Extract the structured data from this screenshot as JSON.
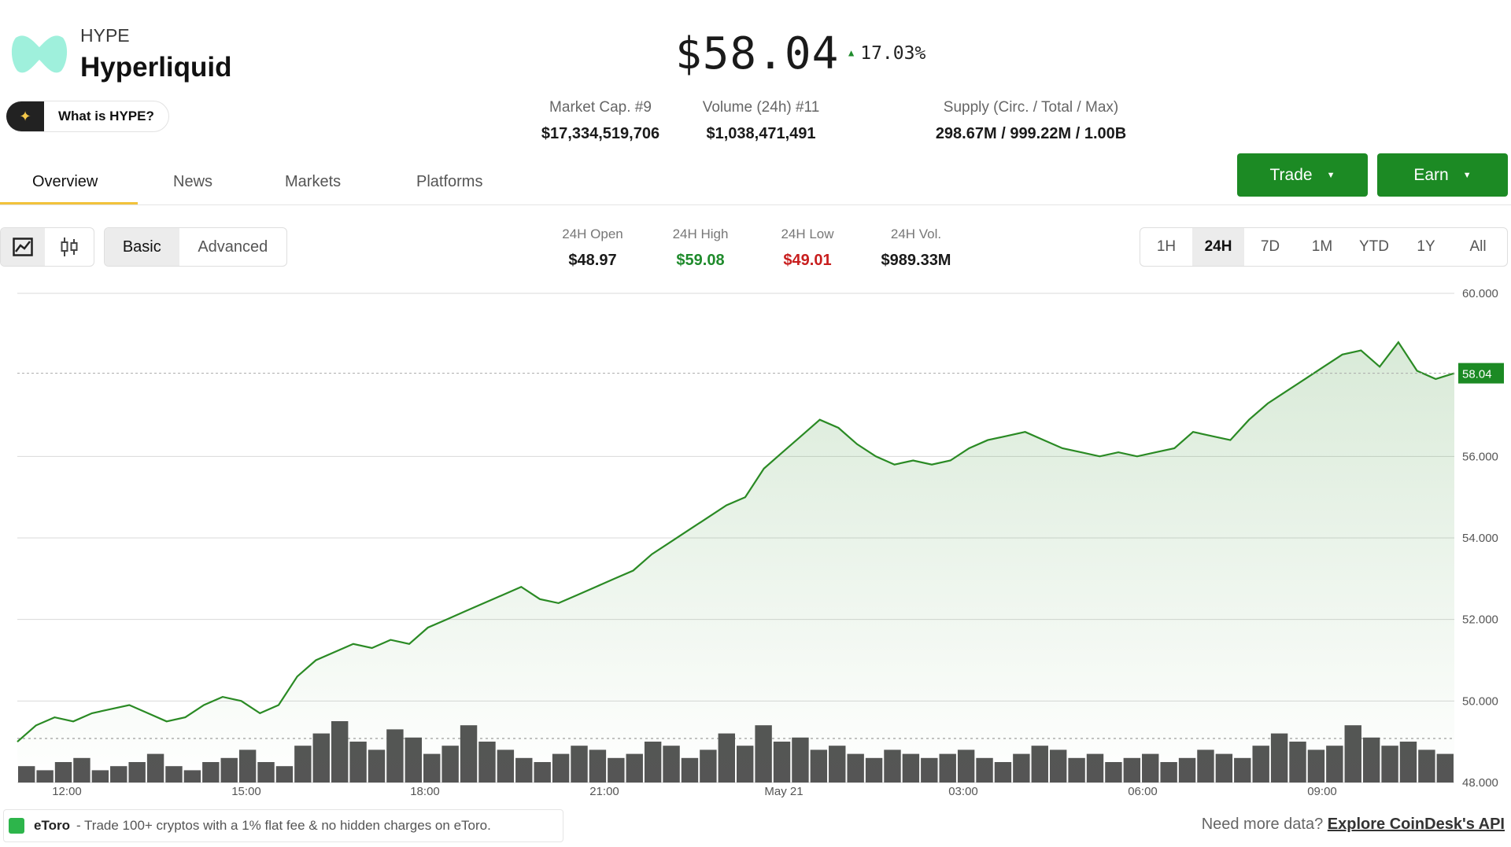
{
  "coin": {
    "symbol": "HYPE",
    "name": "Hyperliquid",
    "what_label": "What is HYPE?",
    "price": "$58.04",
    "change": "17.03%"
  },
  "stats": [
    {
      "label": "Market Cap. #9",
      "value": "$17,334,519,706"
    },
    {
      "label": "Volume (24h) #11",
      "value": "$1,038,471,491"
    },
    {
      "label": "Supply (Circ. / Total / Max)",
      "value": "298.67M / 999.22M / 1.00B"
    }
  ],
  "tabs": [
    "Overview",
    "News",
    "Markets",
    "Platforms"
  ],
  "buttons": {
    "trade": "Trade",
    "earn": "Earn"
  },
  "chart_modes": {
    "basic": "Basic",
    "advanced": "Advanced"
  },
  "ohlc": [
    {
      "label": "24H Open",
      "value": "$48.97",
      "color": "#1a1a1a"
    },
    {
      "label": "24H High",
      "value": "$59.08",
      "color": "#1f8b2c"
    },
    {
      "label": "24H Low",
      "value": "$49.01",
      "color": "#c81e1e"
    },
    {
      "label": "24H Vol.",
      "value": "$989.33M",
      "color": "#1a1a1a"
    }
  ],
  "ranges": [
    "1H",
    "24H",
    "7D",
    "1M",
    "YTD",
    "1Y",
    "All"
  ],
  "selected_range": "24H",
  "colors": {
    "line": "#2a8a24",
    "accent": "#1c8a24",
    "up": "#1f8b2c",
    "down": "#c81e1e"
  },
  "chart_data": {
    "type": "line",
    "y_ticks": [
      "60.000",
      "56.000",
      "54.000",
      "52.000",
      "50.000",
      "48.000"
    ],
    "ylim": [
      48,
      60
    ],
    "x_ticks": [
      "12:00",
      "15:00",
      "18:00",
      "21:00",
      "May 21",
      "03:00",
      "06:00",
      "09:00"
    ],
    "current_label": "58.04",
    "current_value": 58.04,
    "price": [
      49.0,
      49.4,
      49.6,
      49.5,
      49.7,
      49.8,
      49.9,
      49.7,
      49.5,
      49.6,
      49.9,
      50.1,
      50.0,
      49.7,
      49.9,
      50.6,
      51.0,
      51.2,
      51.4,
      51.3,
      51.5,
      51.4,
      51.8,
      52.0,
      52.2,
      52.4,
      52.6,
      52.8,
      52.5,
      52.4,
      52.6,
      52.8,
      53.0,
      53.2,
      53.6,
      53.9,
      54.2,
      54.5,
      54.8,
      55.0,
      55.7,
      56.1,
      56.5,
      56.9,
      56.7,
      56.3,
      56.0,
      55.8,
      55.9,
      55.8,
      55.9,
      56.2,
      56.4,
      56.5,
      56.6,
      56.4,
      56.2,
      56.1,
      56.0,
      56.1,
      56.0,
      56.1,
      56.2,
      56.6,
      56.5,
      56.4,
      56.9,
      57.3,
      57.6,
      57.9,
      58.2,
      58.5,
      58.6,
      58.2,
      58.8,
      58.1,
      57.9,
      58.04
    ]
  },
  "volume": [
    4,
    3,
    5,
    6,
    3,
    4,
    5,
    7,
    4,
    3,
    5,
    6,
    8,
    5,
    4,
    9,
    12,
    15,
    10,
    8,
    13,
    11,
    7,
    9,
    14,
    10,
    8,
    6,
    5,
    7,
    9,
    8,
    6,
    7,
    10,
    9,
    6,
    8,
    12,
    9,
    14,
    10,
    11,
    8,
    9,
    7,
    6,
    8,
    7,
    6,
    7,
    8,
    6,
    5,
    7,
    9,
    8,
    6,
    7,
    5,
    6,
    7,
    5,
    6,
    8,
    7,
    6,
    9,
    12,
    10,
    8,
    9,
    14,
    11,
    9,
    10,
    8,
    7
  ],
  "footer": {
    "ad_brand": "eToro",
    "ad_text": "- Trade 100+ cryptos with a 1% flat fee & no hidden charges on eToro.",
    "api_prefix": "Need more data?",
    "api_link": "Explore CoinDesk's API"
  }
}
